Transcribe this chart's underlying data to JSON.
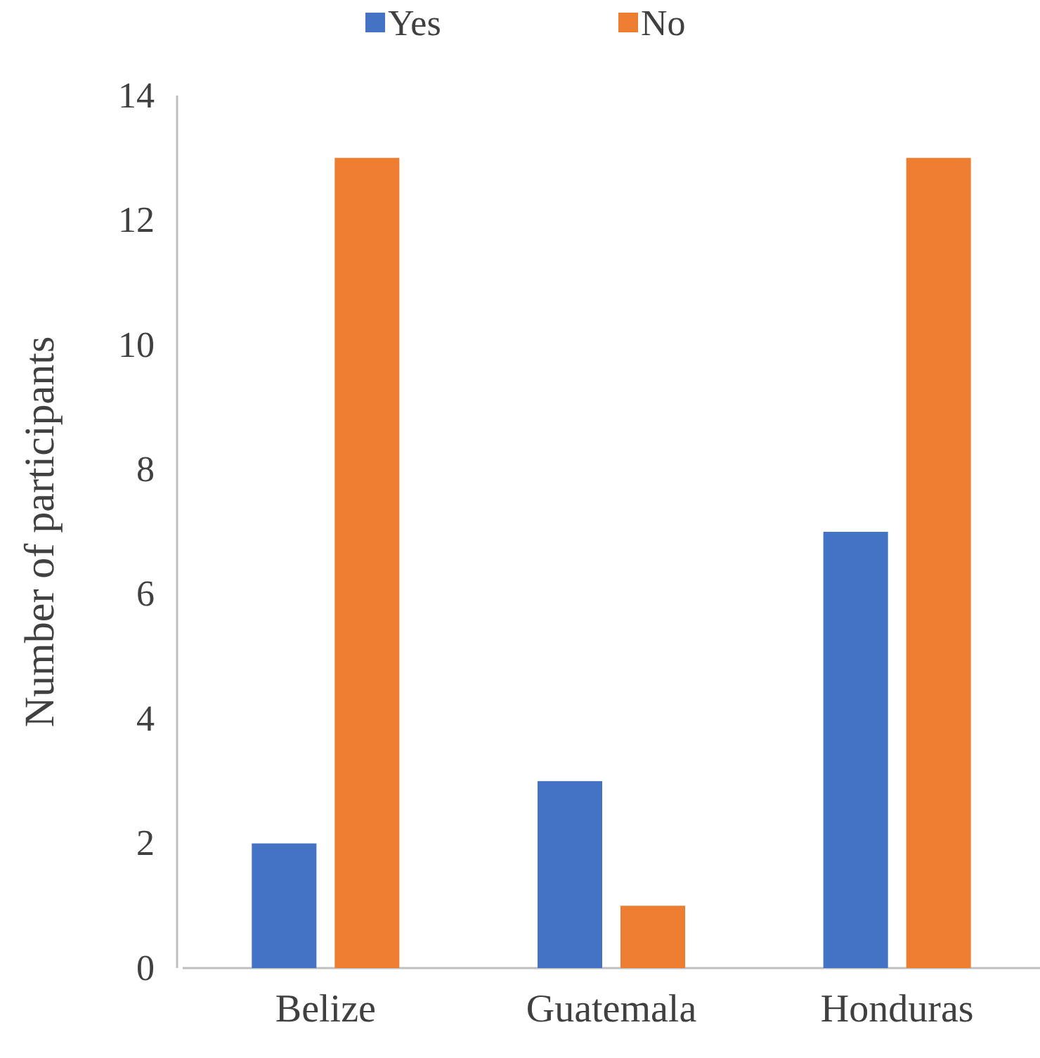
{
  "chart_data": {
    "type": "bar",
    "ylabel": "Number of participants",
    "categories": [
      "Belize",
      "Guatemala",
      "Honduras"
    ],
    "series": [
      {
        "name": "Yes",
        "color": "#4472c4",
        "values": [
          2,
          3,
          7
        ]
      },
      {
        "name": "No",
        "color": "#ed7d31",
        "values": [
          13,
          1,
          13
        ]
      }
    ],
    "ylim": [
      0,
      14
    ],
    "yticks": [
      0,
      2,
      4,
      6,
      8,
      10,
      12,
      14
    ],
    "grid": false,
    "legend": "top"
  }
}
